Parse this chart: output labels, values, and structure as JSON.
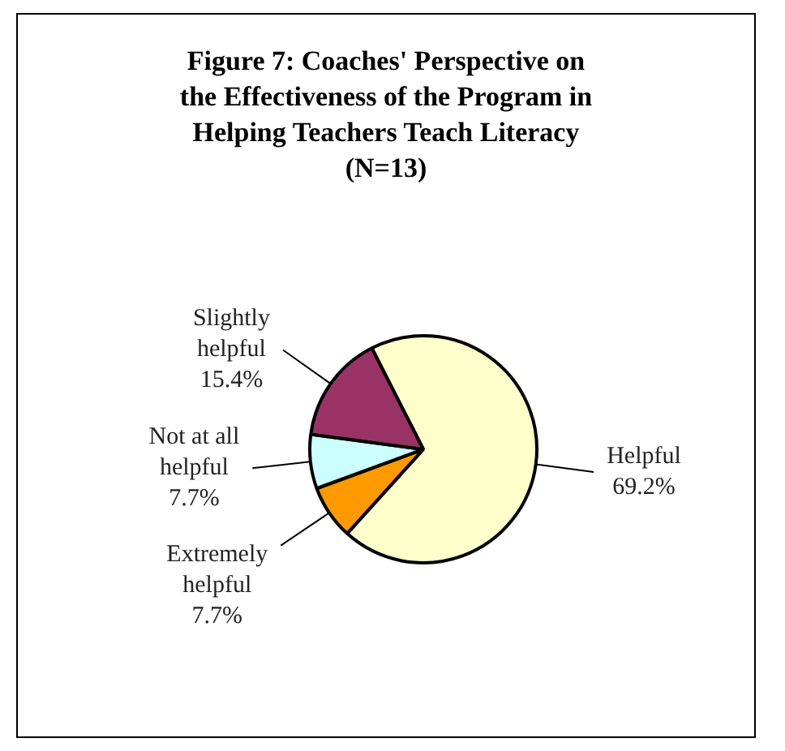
{
  "chart_data": {
    "type": "pie",
    "title": "Figure 7: Coaches' Perspective on the Effectiveness of the Program in Helping Teachers Teach Literacy (N=13)",
    "categories": [
      "Helpful",
      "Extremely helpful",
      "Not at all helpful",
      "Slightly helpful"
    ],
    "values": [
      69.2,
      7.7,
      7.7,
      15.4
    ],
    "value_labels": [
      "69.2%",
      "7.7%",
      "7.7%",
      "15.4%"
    ],
    "colors": [
      "#ffffcc",
      "#ff9900",
      "#ccffff",
      "#993366"
    ],
    "legend": false
  }
}
